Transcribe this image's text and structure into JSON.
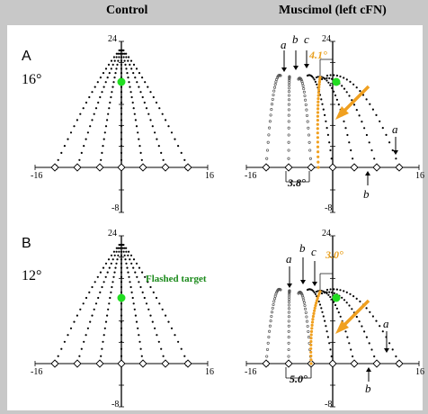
{
  "headers": {
    "control": "Control",
    "muscimol": "Muscimol (left cFN)"
  },
  "panel_a": {
    "letter": "A",
    "amplitude": "16°",
    "ticks": {
      "y_top": "24",
      "y_bottom": "-8",
      "x_left": "-16",
      "x_right": "16"
    },
    "labels": {
      "a": "a",
      "b": "b",
      "c": "c"
    },
    "orange_value": "4.1°",
    "black_value": "3.8°"
  },
  "panel_b": {
    "letter": "B",
    "amplitude": "12°",
    "ticks": {
      "y_top": "24",
      "y_bottom": "-8",
      "x_left": "-16",
      "x_right": "16"
    },
    "labels": {
      "a": "a",
      "b": "b",
      "c": "c"
    },
    "orange_value": "3.0°",
    "black_value": "5.0°",
    "flashed_target_label": "Flashed target"
  },
  "colors": {
    "background": "#ffffff",
    "page": "#c8c8c8",
    "target": "#22dd22",
    "orange": "#f0a020",
    "trajectory": "#000000"
  }
}
